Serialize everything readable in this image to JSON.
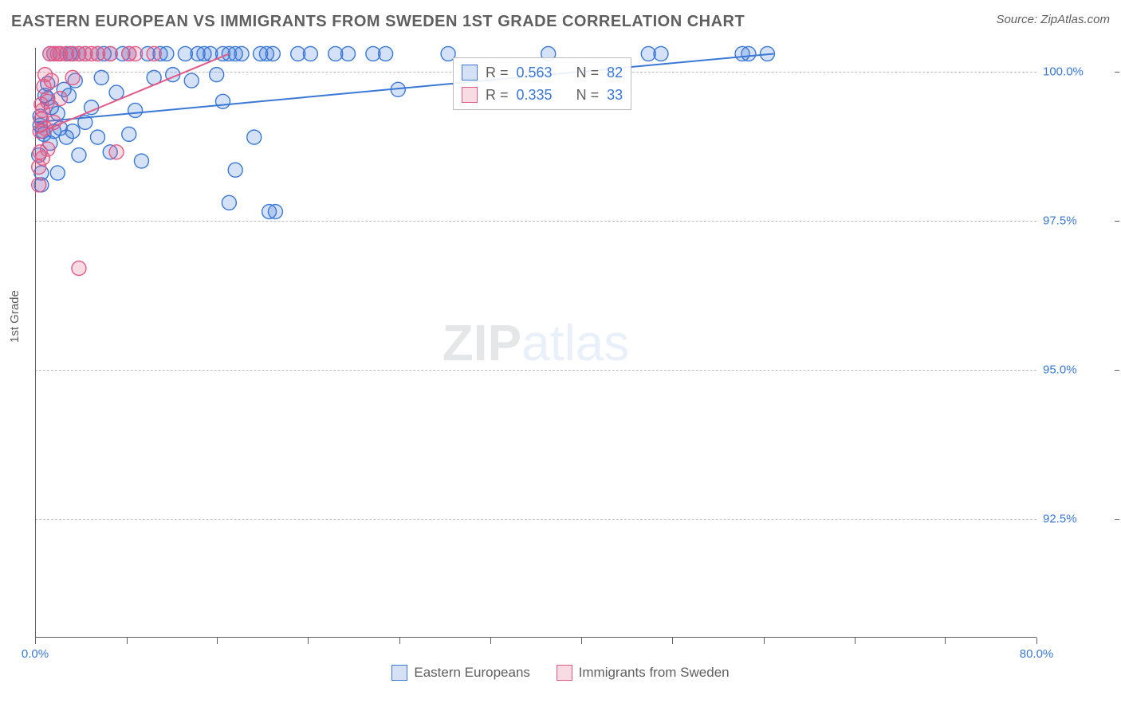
{
  "chart": {
    "type": "scatter",
    "title": "EASTERN EUROPEAN VS IMMIGRANTS FROM SWEDEN 1ST GRADE CORRELATION CHART",
    "title_color": "#5f5f5f",
    "title_fontsize": 20,
    "source_label": "Source: ZipAtlas.com",
    "source_color": "#5f5f5f",
    "background_color": "#ffffff",
    "ylabel": "1st Grade",
    "ylabel_color": "#5f5f5f",
    "xlim": [
      0,
      80
    ],
    "ylim": [
      90.5,
      100.4
    ],
    "x_ticks": [
      0,
      7.3,
      14.5,
      21.8,
      29.1,
      36.4,
      43.6,
      50.9,
      58.2,
      65.5,
      72.7,
      80
    ],
    "x_tick_labels": {
      "0": "0.0%",
      "80": "80.0%"
    },
    "x_tick_label_colors": {
      "0": "#3a78d6",
      "80": "#3a78d6"
    },
    "y_gridlines": [
      92.5,
      95.0,
      97.5,
      100.0
    ],
    "y_tick_labels": {
      "92.5": "92.5%",
      "95.0": "95.0%",
      "97.5": "97.5%",
      "100.0": "100.0%"
    },
    "y_tick_label_color": "#3a78d6",
    "grid_color": "#bcbcbc",
    "axis_color": "#5f5f5f",
    "watermark": {
      "text_bold": "ZIP",
      "text_light": "atlas",
      "color_bold": "#9aa0a6",
      "color_light": "#a9c5eb"
    },
    "series": [
      {
        "name": "Eastern Europeans",
        "color_stroke": "#3a78d6",
        "color_fill": "#3a78d6",
        "fill_opacity": 0.22,
        "marker_radius": 9,
        "stroke_width": 1.4,
        "trend": {
          "x1": 0,
          "y1": 99.15,
          "x2": 59,
          "y2": 100.3,
          "stroke_width": 2
        },
        "points": [
          [
            0.3,
            98.6
          ],
          [
            0.4,
            99.1
          ],
          [
            0.4,
            99.25
          ],
          [
            0.5,
            98.1
          ],
          [
            0.5,
            98.3
          ],
          [
            0.6,
            99.0
          ],
          [
            0.7,
            98.95
          ],
          [
            0.8,
            99.6
          ],
          [
            1.0,
            99.55
          ],
          [
            1.0,
            99.8
          ],
          [
            1.2,
            98.8
          ],
          [
            1.2,
            100.3
          ],
          [
            1.3,
            99.4
          ],
          [
            1.5,
            99.0
          ],
          [
            1.5,
            100.3
          ],
          [
            1.8,
            98.3
          ],
          [
            1.8,
            99.3
          ],
          [
            2.0,
            100.3
          ],
          [
            2.0,
            99.05
          ],
          [
            2.3,
            99.7
          ],
          [
            2.5,
            98.9
          ],
          [
            2.5,
            100.3
          ],
          [
            2.7,
            99.6
          ],
          [
            2.8,
            100.3
          ],
          [
            3.0,
            99.0
          ],
          [
            3.0,
            100.3
          ],
          [
            3.2,
            99.85
          ],
          [
            3.5,
            98.6
          ],
          [
            3.5,
            100.3
          ],
          [
            4.0,
            99.15
          ],
          [
            4.0,
            100.3
          ],
          [
            4.5,
            99.4
          ],
          [
            5.0,
            98.9
          ],
          [
            5.0,
            100.3
          ],
          [
            5.3,
            99.9
          ],
          [
            5.5,
            100.3
          ],
          [
            6.0,
            98.65
          ],
          [
            6.0,
            100.3
          ],
          [
            6.5,
            99.65
          ],
          [
            7.0,
            100.3
          ],
          [
            7.5,
            98.95
          ],
          [
            7.5,
            100.3
          ],
          [
            8.0,
            99.35
          ],
          [
            8.5,
            98.5
          ],
          [
            9.0,
            100.3
          ],
          [
            9.5,
            99.9
          ],
          [
            10.0,
            100.3
          ],
          [
            10.5,
            100.3
          ],
          [
            11.0,
            99.95
          ],
          [
            12.0,
            100.3
          ],
          [
            12.5,
            99.85
          ],
          [
            13.0,
            100.3
          ],
          [
            13.5,
            100.3
          ],
          [
            14.0,
            100.3
          ],
          [
            14.5,
            99.95
          ],
          [
            15.0,
            99.5
          ],
          [
            15.0,
            100.3
          ],
          [
            15.5,
            97.8
          ],
          [
            15.5,
            100.3
          ],
          [
            16.0,
            100.3
          ],
          [
            16.0,
            98.35
          ],
          [
            16.5,
            100.3
          ],
          [
            17.5,
            98.9
          ],
          [
            18.0,
            100.3
          ],
          [
            18.5,
            100.3
          ],
          [
            18.7,
            97.65
          ],
          [
            19.0,
            100.3
          ],
          [
            19.2,
            97.65
          ],
          [
            21.0,
            100.3
          ],
          [
            22.0,
            100.3
          ],
          [
            24.0,
            100.3
          ],
          [
            25.0,
            100.3
          ],
          [
            27.0,
            100.3
          ],
          [
            28.0,
            100.3
          ],
          [
            29.0,
            99.7
          ],
          [
            33.0,
            100.3
          ],
          [
            41.0,
            100.3
          ],
          [
            49.0,
            100.3
          ],
          [
            50.0,
            100.3
          ],
          [
            56.5,
            100.3
          ],
          [
            57.0,
            100.3
          ],
          [
            58.5,
            100.3
          ]
        ]
      },
      {
        "name": "Immigrants from Sweden",
        "color_stroke": "#e35a86",
        "color_fill": "#e35a86",
        "fill_opacity": 0.22,
        "marker_radius": 9,
        "stroke_width": 1.4,
        "trend": {
          "x1": 0,
          "y1": 98.95,
          "x2": 15.5,
          "y2": 100.3,
          "stroke_width": 2
        },
        "points": [
          [
            0.3,
            98.1
          ],
          [
            0.3,
            98.4
          ],
          [
            0.4,
            98.65
          ],
          [
            0.4,
            99.0
          ],
          [
            0.5,
            99.2
          ],
          [
            0.5,
            99.45
          ],
          [
            0.6,
            98.55
          ],
          [
            0.6,
            99.35
          ],
          [
            0.7,
            99.75
          ],
          [
            0.8,
            99.05
          ],
          [
            0.8,
            99.95
          ],
          [
            1.0,
            98.7
          ],
          [
            1.0,
            99.5
          ],
          [
            1.2,
            100.3
          ],
          [
            1.3,
            99.85
          ],
          [
            1.5,
            100.3
          ],
          [
            1.5,
            99.15
          ],
          [
            1.8,
            100.3
          ],
          [
            2.0,
            99.55
          ],
          [
            2.0,
            100.3
          ],
          [
            2.5,
            100.3
          ],
          [
            3.0,
            100.3
          ],
          [
            3.0,
            99.9
          ],
          [
            3.5,
            96.7
          ],
          [
            3.5,
            100.3
          ],
          [
            4.0,
            100.3
          ],
          [
            4.5,
            100.3
          ],
          [
            5.0,
            100.3
          ],
          [
            6.0,
            100.3
          ],
          [
            6.5,
            98.65
          ],
          [
            7.5,
            100.3
          ],
          [
            8.0,
            100.3
          ],
          [
            9.5,
            100.3
          ]
        ]
      }
    ],
    "stats_legend": {
      "rows": [
        {
          "swatch_stroke": "#3a78d6",
          "swatch_fill": "rgba(58,120,214,0.22)",
          "r_label": "R =",
          "r_value": "0.563",
          "n_label": "N =",
          "n_value": "82"
        },
        {
          "swatch_stroke": "#e35a86",
          "swatch_fill": "rgba(227,90,134,0.22)",
          "r_label": "R =",
          "r_value": "0.335",
          "n_label": "N =",
          "n_value": "33"
        }
      ],
      "label_color": "#5f5f5f",
      "value_color": "#3a78d6"
    },
    "bottom_legend": {
      "items": [
        {
          "swatch_stroke": "#3a78d6",
          "swatch_fill": "rgba(58,120,214,0.22)",
          "label": "Eastern Europeans"
        },
        {
          "swatch_stroke": "#e35a86",
          "swatch_fill": "rgba(227,90,134,0.22)",
          "label": "Immigrants from Sweden"
        }
      ],
      "label_color": "#5f5f5f"
    }
  }
}
